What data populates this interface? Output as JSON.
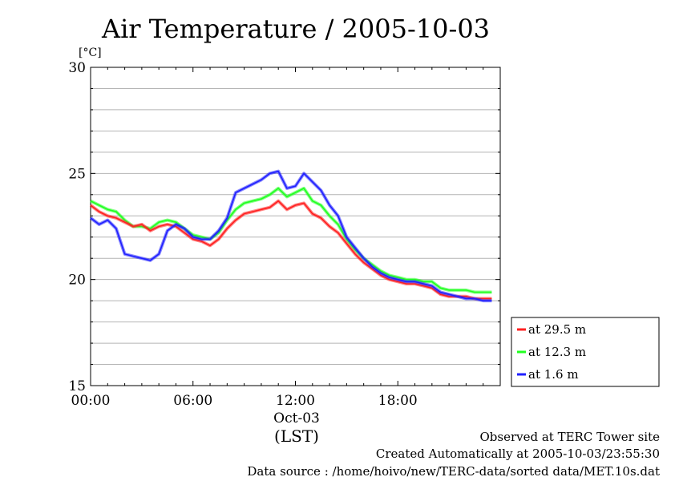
{
  "chart_data": {
    "type": "line",
    "title": "Air Temperature / 2005-10-03",
    "ylabel": "[°C]",
    "xlabel": "(LST)",
    "date_label": "Oct-03",
    "ylim": [
      15,
      30
    ],
    "xlim": [
      0,
      24
    ],
    "yticks": [
      15,
      20,
      25,
      30
    ],
    "ytick_labels": [
      "15",
      "20",
      "25",
      "30"
    ],
    "xticks": [
      0,
      6,
      12,
      18
    ],
    "xtick_labels": [
      "00:00",
      "06:00",
      "12:00",
      "18:00"
    ],
    "grid": "horizontal",
    "legend_position": "right",
    "series": [
      {
        "name": "at 29.5 m",
        "color": "#ff2020",
        "x": [
          0,
          0.5,
          1,
          1.5,
          2,
          2.5,
          3,
          3.5,
          4,
          4.5,
          5,
          5.5,
          6,
          6.5,
          7,
          7.5,
          8,
          8.5,
          9,
          9.5,
          10,
          10.5,
          11,
          11.5,
          12,
          12.5,
          13,
          13.5,
          14,
          14.5,
          15,
          15.5,
          16,
          16.5,
          17,
          17.5,
          18,
          18.5,
          19,
          19.5,
          20,
          20.5,
          21,
          21.5,
          22,
          22.5,
          23,
          23.5
        ],
        "values": [
          23.5,
          23.2,
          23.0,
          22.9,
          22.7,
          22.5,
          22.6,
          22.3,
          22.5,
          22.6,
          22.5,
          22.2,
          21.9,
          21.8,
          21.6,
          21.9,
          22.4,
          22.8,
          23.1,
          23.2,
          23.3,
          23.4,
          23.7,
          23.3,
          23.5,
          23.6,
          23.1,
          22.9,
          22.5,
          22.2,
          21.7,
          21.2,
          20.8,
          20.5,
          20.2,
          20.0,
          19.9,
          19.8,
          19.8,
          19.7,
          19.6,
          19.3,
          19.2,
          19.2,
          19.2,
          19.1,
          19.1,
          19.1
        ]
      },
      {
        "name": "at 12.3 m",
        "color": "#20ff20",
        "x": [
          0,
          0.5,
          1,
          1.5,
          2,
          2.5,
          3,
          3.5,
          4,
          4.5,
          5,
          5.5,
          6,
          6.5,
          7,
          7.5,
          8,
          8.5,
          9,
          9.5,
          10,
          10.5,
          11,
          11.5,
          12,
          12.5,
          13,
          13.5,
          14,
          14.5,
          15,
          15.5,
          16,
          16.5,
          17,
          17.5,
          18,
          18.5,
          19,
          19.5,
          20,
          20.5,
          21,
          21.5,
          22,
          22.5,
          23,
          23.5
        ],
        "values": [
          23.7,
          23.5,
          23.3,
          23.2,
          22.8,
          22.5,
          22.5,
          22.4,
          22.7,
          22.8,
          22.7,
          22.4,
          22.1,
          22.0,
          21.9,
          22.2,
          22.8,
          23.3,
          23.6,
          23.7,
          23.8,
          24.0,
          24.3,
          23.9,
          24.1,
          24.3,
          23.7,
          23.5,
          23.0,
          22.6,
          21.9,
          21.4,
          21.0,
          20.7,
          20.4,
          20.2,
          20.1,
          20.0,
          20.0,
          19.9,
          19.9,
          19.6,
          19.5,
          19.5,
          19.5,
          19.4,
          19.4,
          19.4
        ]
      },
      {
        "name": "at 1.6 m",
        "color": "#2020ff",
        "x": [
          0,
          0.5,
          1,
          1.5,
          2,
          2.5,
          3,
          3.5,
          4,
          4.5,
          5,
          5.5,
          6,
          6.5,
          7,
          7.5,
          8,
          8.5,
          9,
          9.5,
          10,
          10.5,
          11,
          11.5,
          12,
          12.5,
          13,
          13.5,
          14,
          14.5,
          15,
          15.5,
          16,
          16.5,
          17,
          17.5,
          18,
          18.5,
          19,
          19.5,
          20,
          20.5,
          21,
          21.5,
          22,
          22.5,
          23,
          23.5
        ],
        "values": [
          22.9,
          22.6,
          22.8,
          22.4,
          21.2,
          21.1,
          21.0,
          20.9,
          21.2,
          22.3,
          22.6,
          22.4,
          22.0,
          21.9,
          21.9,
          22.3,
          22.9,
          24.1,
          24.3,
          24.5,
          24.7,
          25.0,
          25.1,
          24.3,
          24.4,
          25.0,
          24.6,
          24.2,
          23.5,
          23.0,
          22.0,
          21.5,
          21.0,
          20.6,
          20.3,
          20.1,
          20.0,
          19.9,
          19.9,
          19.8,
          19.7,
          19.4,
          19.3,
          19.2,
          19.1,
          19.1,
          19.0,
          19.0
        ]
      }
    ]
  },
  "footer": {
    "line1": "Observed at TERC Tower site",
    "line2": "Created Automatically at 2005-10-03/23:55:30",
    "line3": "Data source : /home/hoivo/new/TERC-data/sorted  data/MET.10s.dat"
  }
}
